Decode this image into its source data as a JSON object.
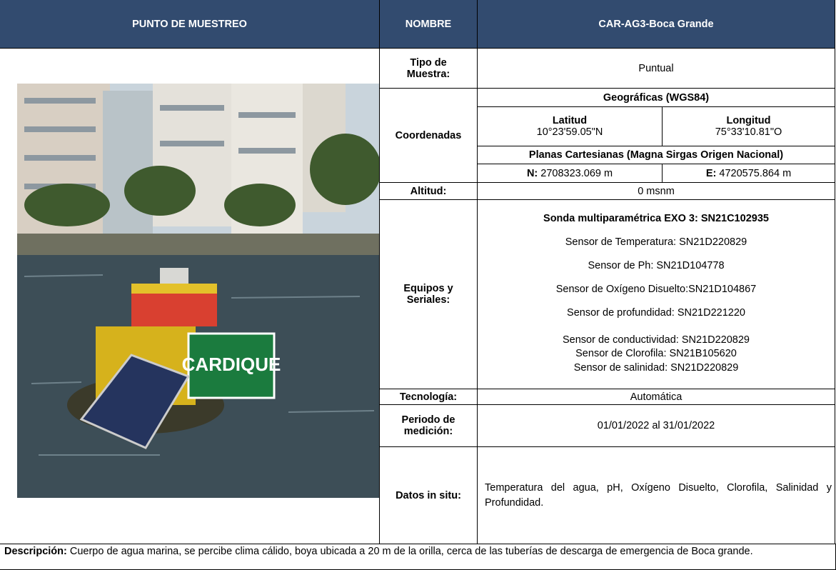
{
  "header": {
    "punto": "PUNTO DE MUESTREO",
    "nombre_label": "NOMBRE",
    "nombre": "CAR-AG3-Boca Grande"
  },
  "photo": {
    "sign_text": "CARDIQUE"
  },
  "tipo": {
    "label": "Tipo de Muestra:",
    "value": "Puntual"
  },
  "coordenadas": {
    "label": "Coordenadas",
    "geo_title": "Geográficas (WGS84)",
    "lat_label": "Latitud",
    "lat": "10°23'59.05\"N",
    "lon_label": "Longitud",
    "lon": "75°33'10.81\"O",
    "planas_title": "Planas Cartesianas (Magna Sirgas Origen Nacional)",
    "n_label": "N:",
    "n_value": "2708323.069 m",
    "e_label": "E:",
    "e_value": "4720575.864 m"
  },
  "altitud": {
    "label": "Altitud:",
    "value": "0 msnm"
  },
  "equipos": {
    "label": "Equipos y Seriales:",
    "title": "Sonda multiparamétrica EXO 3: SN21C102935",
    "items": [
      "Sensor de Temperatura: SN21D220829",
      "Sensor de Ph: SN21D104778",
      "Sensor de Oxígeno Disuelto:SN21D104867",
      "Sensor de profundidad: SN21D221220",
      "Sensor de conductividad: SN21D220829",
      "Sensor de Clorofila: SN21B105620",
      "Sensor de salinidad: SN21D220829"
    ]
  },
  "tecnologia": {
    "label": "Tecnología:",
    "value": "Automática"
  },
  "periodo": {
    "label": "Periodo de medición:",
    "value": "01/01/2022 al 31/01/2022"
  },
  "datos": {
    "label": "Datos in situ:",
    "value": "Temperatura del agua, pH, Oxígeno Disuelto, Clorofila, Salinidad y Profundidad."
  },
  "descripcion": {
    "label": "Descripción:",
    "text": "Cuerpo de agua marina, se percibe clima cálido, boya ubicada a 20 m de la orilla, cerca de las tuberías de descarga de emergencia de Boca grande."
  }
}
